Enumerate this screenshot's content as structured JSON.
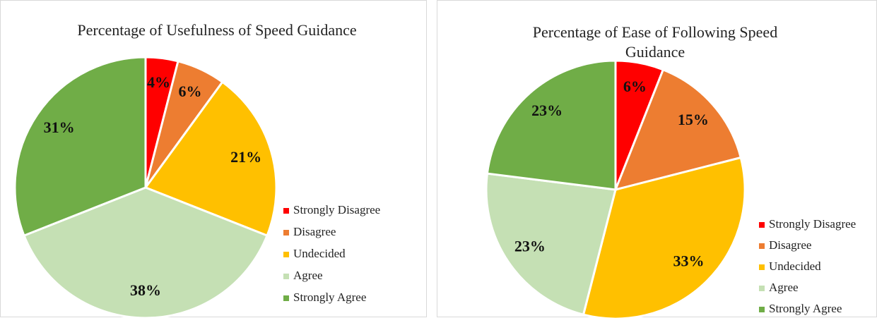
{
  "chart_data": [
    {
      "type": "pie",
      "title": "Percentage of Usefulness of Speed Guidance",
      "categories": [
        "Strongly Disagree",
        "Disagree",
        "Undecided",
        "Agree",
        "Strongly Agree"
      ],
      "values": [
        4,
        6,
        21,
        38,
        31
      ],
      "value_labels": [
        "4%",
        "6%",
        "21%",
        "38%",
        "31%"
      ],
      "colors": [
        "#ff0000",
        "#ed7d31",
        "#ffc000",
        "#c5e0b4",
        "#70ad47"
      ],
      "legend": "right"
    },
    {
      "type": "pie",
      "title": "Percentage of Ease of Following Speed Guidance",
      "categories": [
        "Strongly Disagree",
        "Disagree",
        "Undecided",
        "Agree",
        "Strongly Agree"
      ],
      "values": [
        6,
        15,
        33,
        23,
        23
      ],
      "value_labels": [
        "6%",
        "15%",
        "33%",
        "23%",
        "23%"
      ],
      "colors": [
        "#ff0000",
        "#ed7d31",
        "#ffc000",
        "#c5e0b4",
        "#70ad47"
      ],
      "legend": "right"
    }
  ]
}
